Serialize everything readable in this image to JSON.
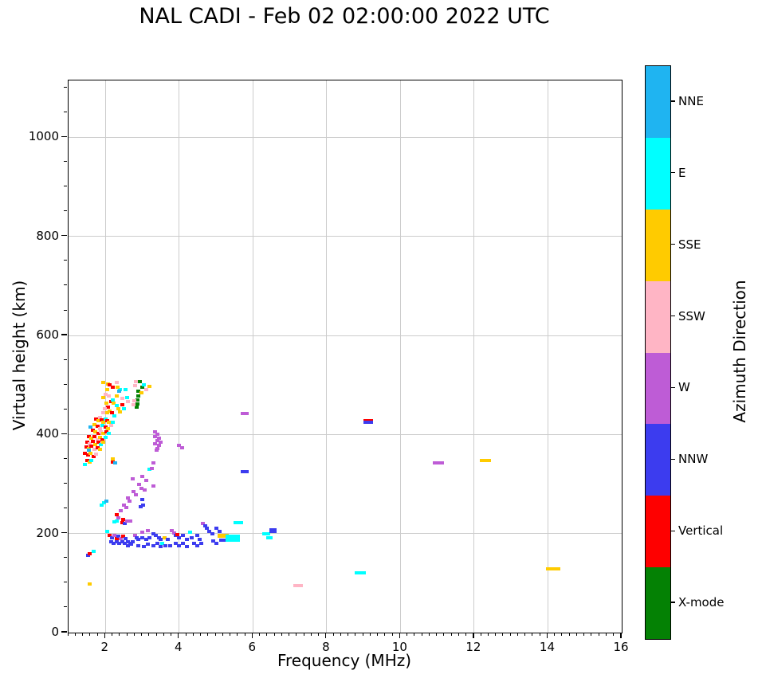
{
  "title": "NAL CADI - Feb 02 02:00:00 2022 UTC",
  "chart_data": {
    "type": "scatter",
    "title": "NAL CADI - Feb 02 02:00:00 2022 UTC",
    "xlabel": "Frequency (MHz)",
    "ylabel": "Virtual height (km)",
    "xlim": [
      1,
      16
    ],
    "ylim": [
      0,
      1115
    ],
    "xticks": [
      2,
      4,
      6,
      8,
      10,
      12,
      14,
      16
    ],
    "yticks": [
      0,
      200,
      400,
      600,
      800,
      1000
    ],
    "x_minor_step": 0.2,
    "y_minor_step": 50,
    "grid": true,
    "legend_position": "right-colorbar",
    "colorbar": {
      "label": "Azimuth Direction",
      "order": "top-to-bottom",
      "categories": [
        {
          "label": "NNE",
          "color": "#1FB4F1"
        },
        {
          "label": "E",
          "color": "#00FFFF"
        },
        {
          "label": "SSE",
          "color": "#FFCB00"
        },
        {
          "label": "SSW",
          "color": "#FFB5C5"
        },
        {
          "label": "W",
          "color": "#BE5CD6"
        },
        {
          "label": "NNW",
          "color": "#3C3CEF"
        },
        {
          "label": "Vertical",
          "color": "#FE0000"
        },
        {
          "label": "X-mode",
          "color": "#048104"
        }
      ]
    },
    "point_format": "[freq_MHz, virtual_height_km, direction_index, width_px?, height_px?]",
    "points": [
      [
        1.93,
        505,
        2
      ],
      [
        2.08,
        502,
        2
      ],
      [
        2.12,
        500,
        6
      ],
      [
        2.3,
        505,
        3
      ],
      [
        1.95,
        474,
        2
      ],
      [
        2.15,
        466,
        6
      ],
      [
        2.23,
        463,
        2
      ],
      [
        2.39,
        491,
        1
      ],
      [
        2.55,
        491,
        1
      ],
      [
        2.58,
        474,
        1
      ],
      [
        2.6,
        466,
        3
      ],
      [
        2.82,
        507,
        3
      ],
      [
        2.8,
        498,
        3
      ],
      [
        2.93,
        507,
        7
      ],
      [
        2.99,
        495,
        7
      ],
      [
        2.9,
        487,
        7
      ],
      [
        2.9,
        478,
        7
      ],
      [
        2.86,
        470,
        7
      ],
      [
        2.88,
        462,
        7
      ],
      [
        2.84,
        456,
        7
      ],
      [
        2.97,
        485,
        2
      ],
      [
        3.2,
        497,
        2
      ],
      [
        3.05,
        500,
        1
      ],
      [
        3.1,
        490,
        3
      ],
      [
        2.4,
        490,
        1
      ],
      [
        2.38,
        487,
        0
      ],
      [
        2.45,
        473,
        3
      ],
      [
        2.78,
        468,
        3
      ],
      [
        2.77,
        460,
        3
      ],
      [
        2.05,
        490,
        2
      ],
      [
        2.0,
        481,
        3
      ],
      [
        2.1,
        478,
        3
      ],
      [
        2.2,
        470,
        1
      ],
      [
        2.3,
        478,
        2
      ],
      [
        2.02,
        463,
        2
      ],
      [
        2.08,
        455,
        6
      ],
      [
        1.98,
        452,
        3
      ],
      [
        2.12,
        448,
        2
      ],
      [
        2.3,
        458,
        1
      ],
      [
        2.35,
        452,
        2
      ],
      [
        2.18,
        444,
        6
      ],
      [
        2.05,
        444,
        2
      ],
      [
        1.93,
        444,
        3
      ],
      [
        2.25,
        438,
        1
      ],
      [
        2.4,
        445,
        2
      ],
      [
        2.5,
        452,
        1
      ],
      [
        2.45,
        460,
        6
      ],
      [
        2.33,
        495,
        2
      ],
      [
        2.2,
        495,
        6
      ],
      [
        1.75,
        432,
        6
      ],
      [
        1.8,
        428,
        2
      ],
      [
        1.85,
        435,
        3
      ],
      [
        1.9,
        430,
        6
      ],
      [
        1.95,
        425,
        2
      ],
      [
        2.0,
        432,
        1
      ],
      [
        2.05,
        428,
        6
      ],
      [
        2.1,
        424,
        2
      ],
      [
        1.7,
        420,
        2
      ],
      [
        1.78,
        416,
        6
      ],
      [
        1.85,
        412,
        3
      ],
      [
        1.92,
        418,
        1
      ],
      [
        2.0,
        415,
        6
      ],
      [
        2.08,
        412,
        2
      ],
      [
        2.15,
        418,
        3
      ],
      [
        2.2,
        425,
        1
      ],
      [
        1.65,
        408,
        6
      ],
      [
        1.72,
        405,
        2
      ],
      [
        1.8,
        402,
        6
      ],
      [
        1.88,
        406,
        3
      ],
      [
        1.95,
        402,
        2
      ],
      [
        2.02,
        406,
        6
      ],
      [
        2.1,
        402,
        1
      ],
      [
        1.6,
        415,
        0
      ],
      [
        1.55,
        396,
        6
      ],
      [
        1.62,
        392,
        2
      ],
      [
        1.7,
        395,
        6
      ],
      [
        1.78,
        390,
        3
      ],
      [
        1.85,
        394,
        2
      ],
      [
        1.92,
        390,
        6
      ],
      [
        2.0,
        394,
        1
      ],
      [
        1.5,
        385,
        6
      ],
      [
        1.58,
        382,
        3
      ],
      [
        1.65,
        386,
        6
      ],
      [
        1.72,
        380,
        2
      ],
      [
        1.8,
        384,
        6
      ],
      [
        1.88,
        380,
        1
      ],
      [
        1.95,
        385,
        2
      ],
      [
        1.48,
        375,
        6
      ],
      [
        1.55,
        372,
        2
      ],
      [
        1.62,
        376,
        6
      ],
      [
        1.7,
        370,
        3
      ],
      [
        1.78,
        374,
        6
      ],
      [
        1.85,
        370,
        2
      ],
      [
        1.45,
        362,
        6
      ],
      [
        1.52,
        358,
        6
      ],
      [
        1.6,
        362,
        2
      ],
      [
        1.68,
        356,
        6
      ],
      [
        1.75,
        360,
        3
      ],
      [
        1.5,
        348,
        6
      ],
      [
        1.58,
        344,
        2
      ],
      [
        1.45,
        340,
        1
      ],
      [
        1.62,
        348,
        1
      ],
      [
        1.55,
        368,
        0
      ],
      [
        2.2,
        350,
        2
      ],
      [
        2.2,
        345,
        6
      ],
      [
        2.26,
        343,
        0
      ],
      [
        3.35,
        405,
        4
      ],
      [
        3.42,
        400,
        4
      ],
      [
        3.35,
        395,
        4
      ],
      [
        3.46,
        392,
        4
      ],
      [
        3.4,
        388,
        4
      ],
      [
        3.5,
        385,
        4
      ],
      [
        3.35,
        382,
        4
      ],
      [
        3.45,
        378,
        4
      ],
      [
        3.4,
        372,
        4
      ],
      [
        3.38,
        368,
        4
      ],
      [
        4.0,
        378,
        4
      ],
      [
        4.07,
        374,
        4
      ],
      [
        3.3,
        343,
        4
      ],
      [
        3.2,
        330,
        1
      ],
      [
        3.25,
        332,
        4
      ],
      [
        3.0,
        315,
        4
      ],
      [
        3.1,
        308,
        4
      ],
      [
        2.92,
        300,
        4
      ],
      [
        2.97,
        292,
        4
      ],
      [
        3.06,
        288,
        4
      ],
      [
        2.76,
        285,
        4
      ],
      [
        2.82,
        278,
        4
      ],
      [
        2.62,
        272,
        4
      ],
      [
        2.66,
        265,
        4
      ],
      [
        2.5,
        258,
        4
      ],
      [
        2.56,
        252,
        4
      ],
      [
        2.42,
        246,
        4
      ],
      [
        2.3,
        238,
        6
      ],
      [
        2.36,
        232,
        4
      ],
      [
        3.0,
        268,
        5
      ],
      [
        3.02,
        258,
        5
      ],
      [
        2.96,
        255,
        5
      ],
      [
        3.3,
        296,
        4
      ],
      [
        2.73,
        310,
        4
      ],
      [
        2.05,
        205,
        1
      ],
      [
        2.25,
        224,
        1
      ],
      [
        2.3,
        226,
        1
      ],
      [
        2.48,
        228,
        6
      ],
      [
        2.45,
        222,
        6
      ],
      [
        2.52,
        220,
        5
      ],
      [
        2.63,
        226,
        4,
        9
      ],
      [
        2.12,
        196,
        6
      ],
      [
        2.18,
        192,
        5
      ],
      [
        2.25,
        196,
        4
      ],
      [
        2.3,
        190,
        6
      ],
      [
        2.35,
        194,
        5
      ],
      [
        2.42,
        190,
        4
      ],
      [
        2.48,
        194,
        6
      ],
      [
        2.55,
        190,
        5
      ],
      [
        2.15,
        183,
        5
      ],
      [
        2.22,
        180,
        5
      ],
      [
        2.3,
        184,
        5
      ],
      [
        2.38,
        180,
        5
      ],
      [
        2.45,
        184,
        5
      ],
      [
        2.52,
        180,
        5
      ],
      [
        2.6,
        184,
        5
      ],
      [
        2.68,
        180,
        5
      ],
      [
        2.75,
        184,
        5
      ],
      [
        2.62,
        176,
        5
      ],
      [
        2.7,
        178,
        5
      ],
      [
        2.8,
        196,
        4
      ],
      [
        2.85,
        192,
        5
      ],
      [
        2.9,
        188,
        5
      ],
      [
        3.0,
        192,
        5
      ],
      [
        3.1,
        188,
        5
      ],
      [
        3.2,
        192,
        5
      ],
      [
        3.0,
        202,
        4
      ],
      [
        3.15,
        206,
        4
      ],
      [
        3.3,
        200,
        5
      ],
      [
        3.36,
        196,
        5
      ],
      [
        3.45,
        192,
        5
      ],
      [
        3.5,
        188,
        5
      ],
      [
        3.6,
        192,
        2
      ],
      [
        3.55,
        180,
        1
      ],
      [
        3.62,
        176,
        5
      ],
      [
        3.7,
        188,
        5
      ],
      [
        3.8,
        206,
        4
      ],
      [
        3.87,
        201,
        4
      ],
      [
        3.9,
        196,
        5
      ],
      [
        3.96,
        198,
        6
      ],
      [
        4.0,
        192,
        5
      ],
      [
        4.1,
        196,
        5
      ],
      [
        4.3,
        203,
        1
      ],
      [
        4.2,
        188,
        5
      ],
      [
        4.35,
        192,
        5
      ],
      [
        4.5,
        196,
        5
      ],
      [
        4.65,
        220,
        4
      ],
      [
        4.7,
        215,
        5
      ],
      [
        4.76,
        210,
        5
      ],
      [
        4.82,
        205,
        5
      ],
      [
        4.9,
        200,
        5
      ],
      [
        5.0,
        210,
        5
      ],
      [
        5.1,
        205,
        5
      ],
      [
        5.2,
        195,
        2,
        14,
        5
      ],
      [
        5.45,
        191,
        1,
        18,
        9
      ],
      [
        5.18,
        186,
        5,
        8
      ],
      [
        5.6,
        222,
        1,
        12
      ],
      [
        4.92,
        185,
        5
      ],
      [
        5.0,
        180,
        5
      ],
      [
        4.4,
        180,
        5
      ],
      [
        4.5,
        176,
        5
      ],
      [
        4.6,
        180,
        5
      ],
      [
        3.9,
        180,
        5
      ],
      [
        4.0,
        176,
        5
      ],
      [
        4.1,
        180,
        5
      ],
      [
        3.76,
        176,
        5
      ],
      [
        3.3,
        176,
        5
      ],
      [
        3.4,
        180,
        5
      ],
      [
        3.15,
        178,
        5
      ],
      [
        2.9,
        176,
        5
      ],
      [
        3.05,
        174,
        5
      ],
      [
        3.5,
        174,
        5
      ],
      [
        4.2,
        174,
        5
      ],
      [
        4.55,
        188,
        5
      ],
      [
        6.35,
        200,
        1,
        10
      ],
      [
        6.45,
        192,
        1,
        8
      ],
      [
        6.55,
        206,
        5,
        9,
        6
      ],
      [
        1.54,
        156,
        5
      ],
      [
        1.58,
        159,
        6
      ],
      [
        1.69,
        164,
        1
      ],
      [
        1.58,
        98,
        2
      ],
      [
        1.9,
        258,
        1
      ],
      [
        1.96,
        262,
        1
      ],
      [
        2.02,
        265,
        0
      ],
      [
        5.77,
        443,
        4,
        10
      ],
      [
        5.77,
        325,
        5,
        10
      ],
      [
        7.22,
        95,
        3,
        12
      ],
      [
        8.92,
        120,
        1,
        14
      ],
      [
        9.12,
        428,
        6,
        12
      ],
      [
        9.12,
        424,
        5,
        12
      ],
      [
        11.02,
        342,
        4,
        14
      ],
      [
        12.3,
        348,
        2,
        14
      ],
      [
        14.15,
        128,
        2,
        18
      ]
    ]
  }
}
